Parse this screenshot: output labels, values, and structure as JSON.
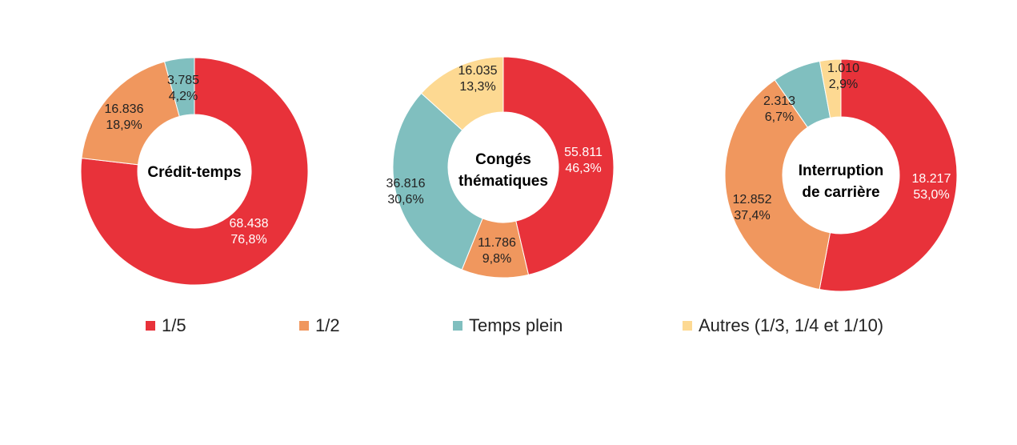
{
  "colors": {
    "c1": "#e8323a",
    "c2": "#f0975e",
    "c3": "#80bfbf",
    "c4": "#fdd992"
  },
  "legend": [
    {
      "label": "1/5",
      "color": "#e8323a"
    },
    {
      "label": "1/2",
      "color": "#f0975e"
    },
    {
      "label": "Temps plein",
      "color": "#80bfbf"
    },
    {
      "label": "Autres (1/3, 1/4 et 1/10)",
      "color": "#fdd992"
    }
  ],
  "chart_data": [
    {
      "type": "pie",
      "title": "Crédit-temps",
      "series": [
        {
          "name": "1/5",
          "value": 68438,
          "label": "68.438",
          "pct": "76,8%"
        },
        {
          "name": "1/2",
          "value": 16836,
          "label": "16.836",
          "pct": "18,9%"
        },
        {
          "name": "Temps plein",
          "value": 3785,
          "label": "3.785",
          "pct": "4,2%"
        }
      ]
    },
    {
      "type": "pie",
      "title": "Congés thématiques",
      "series": [
        {
          "name": "1/5",
          "value": 55811,
          "label": "55.811",
          "pct": "46,3%"
        },
        {
          "name": "1/2",
          "value": 11786,
          "label": "11.786",
          "pct": "9,8%"
        },
        {
          "name": "Temps plein",
          "value": 36816,
          "label": "36.816",
          "pct": "30,6%"
        },
        {
          "name": "Autres (1/3, 1/4 et 1/10)",
          "value": 16035,
          "label": "16.035",
          "pct": "13,3%"
        }
      ]
    },
    {
      "type": "pie",
      "title": "Interruption de carrière",
      "series": [
        {
          "name": "1/5",
          "value": 18217,
          "label": "18.217",
          "pct": "53,0%"
        },
        {
          "name": "1/2",
          "value": 12852,
          "label": "12.852",
          "pct": "37,4%"
        },
        {
          "name": "Temps plein",
          "value": 2313,
          "label": "2.313",
          "pct": "6,7%"
        },
        {
          "name": "Autres (1/3, 1/4 et 1/10)",
          "value": 1010,
          "label": "1.010",
          "pct": "2,9%"
        }
      ]
    }
  ]
}
